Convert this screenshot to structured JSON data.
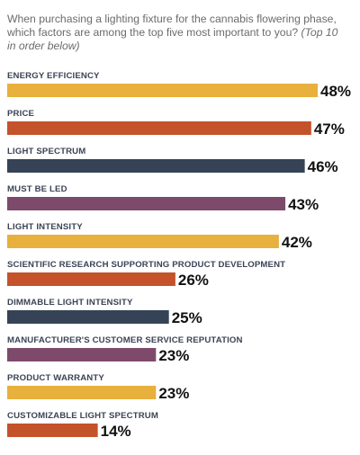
{
  "question": {
    "text": "When purchasing a lighting fixture for the cannabis flowering phase, which factors are among the top five most important to you?",
    "note": "(Top 10 in order below)"
  },
  "chart_data": {
    "type": "bar",
    "orientation": "horizontal",
    "title": "",
    "xlabel": "",
    "ylabel": "",
    "xlim": [
      0,
      48
    ],
    "grid": false,
    "legend": "none",
    "value_suffix": "%",
    "categories": [
      "ENERGY EFFICIENCY",
      "PRICE",
      "LIGHT SPECTRUM",
      "MUST BE LED",
      "LIGHT INTENSITY",
      "SCIENTIFIC RESEARCH SUPPORTING PRODUCT DEVELOPMENT",
      "DIMMABLE LIGHT INTENSITY",
      "MANUFACTURER'S CUSTOMER SERVICE REPUTATION",
      "PRODUCT WARRANTY",
      "CUSTOMIZABLE LIGHT SPECTRUM"
    ],
    "values": [
      48,
      47,
      46,
      43,
      42,
      26,
      25,
      23,
      23,
      14
    ],
    "colors": [
      "#e8b03c",
      "#c4522a",
      "#364356",
      "#7e4a6b",
      "#e8b03c",
      "#c4522a",
      "#364356",
      "#7e4a6b",
      "#e8b03c",
      "#c4522a"
    ]
  }
}
